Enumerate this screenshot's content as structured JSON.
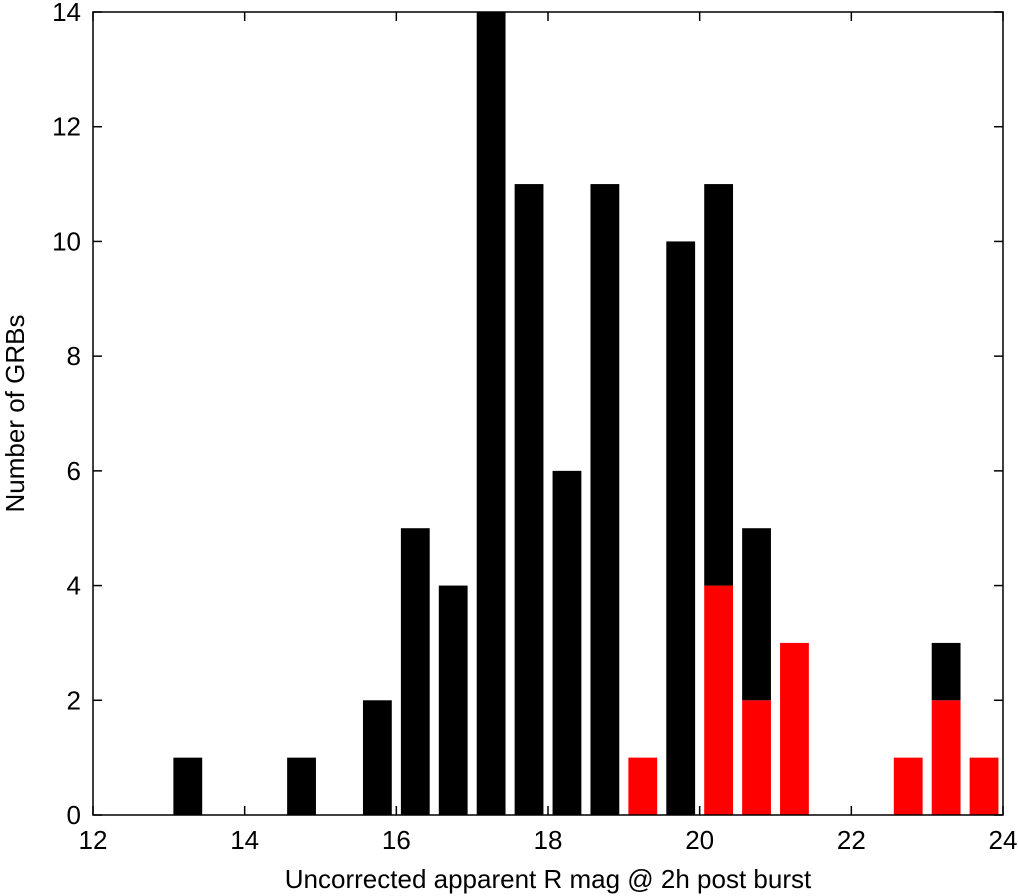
{
  "chart_data": {
    "type": "bar",
    "stacked": true,
    "xlabel": "Uncorrected apparent R mag @ 2h post burst",
    "ylabel": "Number of GRBs",
    "xlim": [
      12,
      24
    ],
    "ylim": [
      0,
      14
    ],
    "xticks": [
      12,
      14,
      16,
      18,
      20,
      22,
      24
    ],
    "yticks": [
      0,
      2,
      4,
      6,
      8,
      10,
      12,
      14
    ],
    "bin_width": 0.5,
    "grid": false,
    "legend": "none",
    "x": [
      13.25,
      13.75,
      14.25,
      14.75,
      15.25,
      15.75,
      16.25,
      16.75,
      17.25,
      17.75,
      18.25,
      18.75,
      19.25,
      19.75,
      20.25,
      20.75,
      21.25,
      21.75,
      22.25,
      22.75,
      23.25,
      23.75
    ],
    "series": [
      {
        "color": "#ff0000",
        "values": [
          0,
          0,
          0,
          0,
          0,
          0,
          0,
          0,
          0,
          0,
          0,
          0,
          1,
          0,
          4,
          2,
          3,
          0,
          0,
          1,
          2,
          1
        ]
      },
      {
        "color": "#000000",
        "values": [
          1,
          0,
          0,
          1,
          0,
          2,
          5,
          4,
          14,
          11,
          6,
          11,
          0,
          10,
          7,
          3,
          0,
          0,
          0,
          0,
          1,
          0
        ]
      }
    ]
  }
}
